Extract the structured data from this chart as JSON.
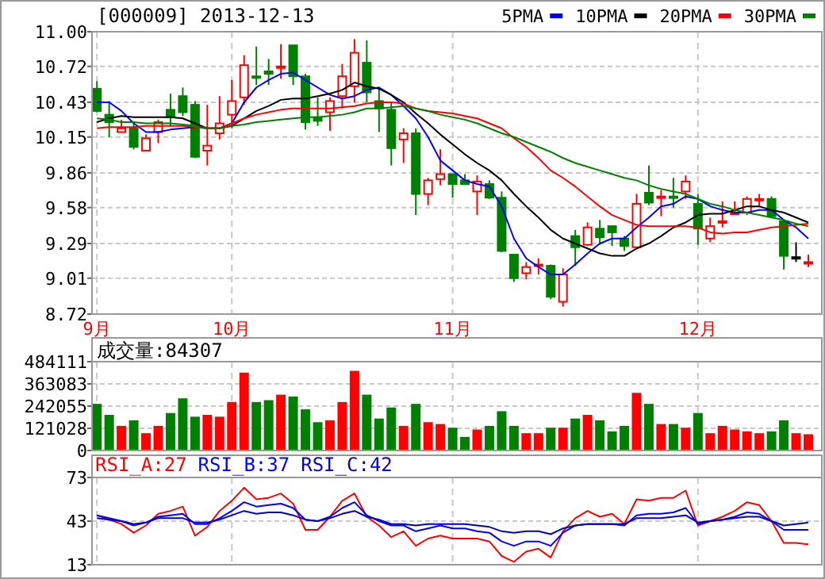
{
  "chart_data": [
    {
      "type": "candlestick",
      "title": "[000009] 2013-12-13",
      "categories": [
        "9月",
        null,
        null,
        null,
        null,
        null,
        null,
        null,
        null,
        null,
        null,
        "10月",
        null,
        null,
        null,
        null,
        null,
        null,
        null,
        null,
        null,
        null,
        null,
        null,
        null,
        null,
        null,
        null,
        null,
        "11月",
        null,
        null,
        null,
        null,
        null,
        null,
        null,
        null,
        null,
        null,
        null,
        null,
        null,
        null,
        null,
        null,
        null,
        null,
        null,
        "12月",
        null,
        null,
        null,
        null,
        null,
        null,
        null,
        null,
        null
      ],
      "ohlc": [
        [
          10.54,
          10.6,
          10.35,
          10.36
        ],
        [
          10.33,
          10.44,
          10.15,
          10.27
        ],
        [
          10.19,
          10.29,
          10.19,
          10.22
        ],
        [
          10.22,
          10.27,
          10.05,
          10.07
        ],
        [
          10.04,
          10.17,
          10.04,
          10.14
        ],
        [
          10.19,
          10.29,
          10.1,
          10.27
        ],
        [
          10.37,
          10.5,
          10.24,
          10.31
        ],
        [
          10.48,
          10.55,
          10.32,
          10.35
        ],
        [
          10.41,
          10.44,
          9.98,
          9.99
        ],
        [
          10.04,
          10.41,
          9.92,
          10.08
        ],
        [
          10.18,
          10.48,
          10.13,
          10.26
        ],
        [
          10.33,
          10.61,
          10.22,
          10.44
        ],
        [
          10.47,
          10.81,
          10.41,
          10.73
        ],
        [
          10.64,
          10.88,
          10.57,
          10.63
        ],
        [
          10.68,
          10.78,
          10.57,
          10.66
        ],
        [
          10.71,
          10.9,
          10.62,
          10.72
        ],
        [
          10.89,
          10.89,
          10.57,
          10.64
        ],
        [
          10.64,
          10.66,
          10.21,
          10.27
        ],
        [
          10.31,
          10.47,
          10.24,
          10.28
        ],
        [
          10.35,
          10.47,
          10.2,
          10.44
        ],
        [
          10.48,
          10.74,
          10.38,
          10.64
        ],
        [
          10.56,
          10.94,
          10.43,
          10.83
        ],
        [
          10.75,
          10.93,
          10.43,
          10.51
        ],
        [
          10.44,
          10.55,
          10.19,
          10.38
        ],
        [
          10.37,
          10.43,
          9.92,
          10.06
        ],
        [
          10.13,
          10.22,
          9.94,
          10.18
        ],
        [
          10.18,
          10.22,
          9.52,
          9.69
        ],
        [
          9.69,
          9.82,
          9.6,
          9.8
        ],
        [
          9.81,
          10.05,
          9.76,
          9.85
        ],
        [
          9.85,
          9.85,
          9.66,
          9.77
        ],
        [
          9.8,
          9.85,
          9.77,
          9.77
        ],
        [
          9.71,
          9.84,
          9.52,
          9.79
        ],
        [
          9.77,
          9.8,
          9.65,
          9.66
        ],
        [
          9.66,
          9.71,
          9.22,
          9.23
        ],
        [
          9.2,
          9.2,
          8.98,
          9.01
        ],
        [
          9.05,
          9.14,
          9.0,
          9.1
        ],
        [
          9.11,
          9.17,
          9.04,
          9.12
        ],
        [
          9.11,
          9.12,
          8.84,
          8.86
        ],
        [
          8.82,
          9.09,
          8.78,
          9.04
        ],
        [
          9.35,
          9.4,
          9.11,
          9.26
        ],
        [
          9.28,
          9.46,
          9.27,
          9.42
        ],
        [
          9.41,
          9.48,
          9.28,
          9.34
        ],
        [
          9.43,
          9.43,
          9.27,
          9.38
        ],
        [
          9.33,
          9.35,
          9.23,
          9.27
        ],
        [
          9.26,
          9.69,
          9.26,
          9.61
        ],
        [
          9.7,
          9.92,
          9.6,
          9.62
        ],
        [
          9.66,
          9.72,
          9.51,
          9.67
        ],
        [
          9.67,
          9.82,
          9.58,
          9.66
        ],
        [
          9.71,
          9.84,
          9.65,
          9.79
        ],
        [
          9.61,
          9.69,
          9.28,
          9.41
        ],
        [
          9.33,
          9.5,
          9.3,
          9.43
        ],
        [
          9.46,
          9.63,
          9.42,
          9.47
        ],
        [
          9.53,
          9.63,
          9.52,
          9.54
        ],
        [
          9.54,
          9.67,
          9.52,
          9.65
        ],
        [
          9.64,
          9.69,
          9.59,
          9.65
        ],
        [
          9.65,
          9.67,
          9.5,
          9.51
        ],
        [
          9.47,
          9.48,
          9.08,
          9.19
        ],
        [
          9.18,
          9.3,
          9.14,
          9.18
        ],
        [
          9.13,
          9.2,
          9.1,
          9.14
        ]
      ],
      "colors": [
        "#008000",
        "#008000",
        "#ff0000",
        "#008000",
        "#ff0000",
        "#ff0000",
        "#008000",
        "#008000",
        "#008000",
        "#ff0000",
        "#ff0000",
        "#ff0000",
        "#ff0000",
        "#008000",
        "#008000",
        "#ff0000",
        "#008000",
        "#008000",
        "#008000",
        "#ff0000",
        "#ff0000",
        "#ff0000",
        "#008000",
        "#008000",
        "#008000",
        "#ff0000",
        "#008000",
        "#ff0000",
        "#ff0000",
        "#008000",
        "#008000",
        "#ff0000",
        "#008000",
        "#008000",
        "#008000",
        "#ff0000",
        "#ff0000",
        "#008000",
        "#ff0000",
        "#008000",
        "#ff0000",
        "#008000",
        "#008000",
        "#008000",
        "#ff0000",
        "#008000",
        "#ff0000",
        "#008000",
        "#ff0000",
        "#008000",
        "#ff0000",
        "#ff0000",
        "#ff0000",
        "#ff0000",
        "#ff0000",
        "#008000",
        "#008000",
        "#000000",
        "#ff0000"
      ],
      "series": [
        {
          "name": "5PMA",
          "type": "line",
          "color": "#0000ff",
          "values": [
            10.43,
            10.43,
            10.36,
            10.26,
            10.19,
            10.19,
            10.21,
            10.22,
            10.23,
            10.22,
            10.22,
            10.26,
            10.43,
            10.55,
            10.61,
            10.66,
            10.67,
            10.61,
            10.55,
            10.49,
            10.46,
            10.48,
            10.53,
            10.55,
            10.49,
            10.4,
            10.3,
            10.15,
            9.96,
            9.88,
            9.8,
            9.77,
            9.75,
            9.59,
            9.33,
            9.17,
            9.1,
            9.04,
            9.04,
            9.12,
            9.21,
            9.29,
            9.33,
            9.33,
            9.42,
            9.5,
            9.59,
            9.61,
            9.67,
            9.65,
            9.59,
            9.56,
            9.54,
            9.54,
            9.56,
            9.56,
            9.48,
            9.42,
            9.33
          ]
        },
        {
          "name": "10PMA",
          "type": "line",
          "color": "#000000",
          "values": [
            10.27,
            10.3,
            10.32,
            10.31,
            10.31,
            10.31,
            10.31,
            10.3,
            10.26,
            10.22,
            10.22,
            10.24,
            10.3,
            10.36,
            10.4,
            10.45,
            10.46,
            10.46,
            10.48,
            10.5,
            10.53,
            10.59,
            10.56,
            10.54,
            10.49,
            10.43,
            10.34,
            10.26,
            10.17,
            10.09,
            10.01,
            9.94,
            9.88,
            9.8,
            9.69,
            9.59,
            9.5,
            9.4,
            9.33,
            9.29,
            9.25,
            9.21,
            9.19,
            9.19,
            9.25,
            9.29,
            9.35,
            9.42,
            9.46,
            9.52,
            9.53,
            9.53,
            9.56,
            9.59,
            9.59,
            9.56,
            9.54,
            9.5,
            9.46
          ]
        },
        {
          "name": "20PMA",
          "type": "line",
          "color": "#ff0000",
          "values": [
            10.22,
            10.23,
            10.23,
            10.23,
            10.24,
            10.24,
            10.24,
            10.24,
            10.23,
            10.22,
            10.22,
            10.26,
            10.3,
            10.33,
            10.35,
            10.37,
            10.38,
            10.38,
            10.38,
            10.38,
            10.39,
            10.4,
            10.42,
            10.43,
            10.43,
            10.42,
            10.38,
            10.36,
            10.35,
            10.34,
            10.32,
            10.3,
            10.26,
            10.22,
            10.14,
            10.07,
            9.98,
            9.88,
            9.82,
            9.75,
            9.67,
            9.59,
            9.52,
            9.48,
            9.44,
            9.43,
            9.43,
            9.43,
            9.43,
            9.42,
            9.38,
            9.37,
            9.38,
            9.38,
            9.4,
            9.42,
            9.43,
            9.44,
            9.45
          ]
        },
        {
          "name": "30PMA",
          "type": "line",
          "color": "#008000",
          "values": [
            10.3,
            10.29,
            10.27,
            10.27,
            10.26,
            10.26,
            10.26,
            10.25,
            10.24,
            10.22,
            10.22,
            10.24,
            10.25,
            10.27,
            10.28,
            10.29,
            10.3,
            10.31,
            10.31,
            10.32,
            10.33,
            10.35,
            10.38,
            10.38,
            10.39,
            10.4,
            10.38,
            10.36,
            10.33,
            10.31,
            10.29,
            10.26,
            10.22,
            10.18,
            10.15,
            10.11,
            10.07,
            10.03,
            9.98,
            9.94,
            9.91,
            9.88,
            9.85,
            9.82,
            9.8,
            9.76,
            9.73,
            9.71,
            9.69,
            9.65,
            9.61,
            9.59,
            9.56,
            9.54,
            9.52,
            9.5,
            9.48,
            9.45,
            9.43
          ]
        }
      ],
      "ylim": [
        8.72,
        11.0
      ],
      "yticks": [
        8.72,
        9.01,
        9.29,
        9.58,
        9.86,
        10.15,
        10.43,
        10.72,
        {
          "value": 11,
          "label": "11.00"
        }
      ],
      "grid": true,
      "legend": "top right"
    },
    {
      "type": "bar",
      "title": "成交量:84307",
      "categories": [
        null,
        null,
        null,
        null,
        null,
        null,
        null,
        null,
        null,
        null,
        null,
        null,
        null,
        null,
        null,
        null,
        null,
        null,
        null,
        null,
        null,
        null,
        null,
        null,
        null,
        null,
        null,
        null,
        null,
        null,
        null,
        null,
        null,
        null,
        null,
        null,
        null,
        null,
        null,
        null,
        null,
        null,
        null,
        null,
        null,
        null,
        null,
        null,
        null,
        null,
        null,
        null,
        null,
        null,
        null,
        null,
        null,
        null,
        null
      ],
      "values": [
        250000,
        190000,
        130000,
        160000,
        90000,
        130000,
        200000,
        280000,
        180000,
        190000,
        180000,
        260000,
        420000,
        260000,
        270000,
        300000,
        290000,
        220000,
        150000,
        160000,
        260000,
        430000,
        300000,
        170000,
        230000,
        130000,
        250000,
        150000,
        140000,
        120000,
        70000,
        110000,
        130000,
        210000,
        130000,
        90000,
        90000,
        120000,
        120000,
        170000,
        190000,
        160000,
        100000,
        130000,
        310000,
        250000,
        140000,
        140000,
        120000,
        200000,
        90000,
        130000,
        110000,
        100000,
        90000,
        100000,
        160000,
        90000,
        84307
      ],
      "colors": [
        "#008000",
        "#008000",
        "#ff0000",
        "#008000",
        "#ff0000",
        "#ff0000",
        "#008000",
        "#008000",
        "#008000",
        "#ff0000",
        "#ff0000",
        "#ff0000",
        "#ff0000",
        "#008000",
        "#008000",
        "#ff0000",
        "#008000",
        "#008000",
        "#008000",
        "#ff0000",
        "#ff0000",
        "#ff0000",
        "#008000",
        "#008000",
        "#008000",
        "#ff0000",
        "#008000",
        "#ff0000",
        "#ff0000",
        "#008000",
        "#008000",
        "#ff0000",
        "#008000",
        "#008000",
        "#008000",
        "#ff0000",
        "#ff0000",
        "#008000",
        "#ff0000",
        "#008000",
        "#ff0000",
        "#008000",
        "#008000",
        "#008000",
        "#ff0000",
        "#008000",
        "#ff0000",
        "#008000",
        "#ff0000",
        "#008000",
        "#ff0000",
        "#ff0000",
        "#ff0000",
        "#ff0000",
        "#ff0000",
        "#008000",
        "#008000",
        "#ff0000",
        "#ff0000"
      ],
      "ylim": [
        0,
        484111
      ],
      "yticks": [
        0,
        121028,
        242055,
        363083,
        484111
      ],
      "grid": true,
      "tick_labels": "y"
    },
    {
      "type": "line",
      "categories": [
        null,
        null,
        null,
        null,
        null,
        null,
        null,
        null,
        null,
        null,
        null,
        null,
        null,
        null,
        null,
        null,
        null,
        null,
        null,
        null,
        null,
        null,
        null,
        null,
        null,
        null,
        null,
        null,
        null,
        null,
        null,
        null,
        null,
        null,
        null,
        null,
        null,
        null,
        null,
        null,
        null,
        null,
        null,
        null,
        null,
        null,
        null,
        null,
        null,
        null,
        null,
        null,
        null,
        null,
        null,
        null,
        null,
        null,
        null
      ],
      "series": [
        {
          "name": "RSI_A:27",
          "color": "#ff0000",
          "values": [
            47,
            44,
            41,
            35,
            40,
            48,
            50,
            53,
            33,
            39,
            50,
            57,
            66,
            58,
            59,
            62,
            55,
            37,
            37,
            46,
            57,
            62,
            46,
            40,
            32,
            36,
            26,
            31,
            33,
            31,
            31,
            31,
            29,
            19,
            15,
            22,
            24,
            18,
            36,
            45,
            50,
            46,
            48,
            41,
            58,
            57,
            59,
            59,
            64,
            40,
            43,
            46,
            50,
            56,
            54,
            43,
            28,
            28,
            27
          ]
        },
        {
          "name": "RSI_B:37",
          "color": "#0000ff",
          "values": [
            47,
            45,
            43,
            40,
            42,
            46,
            47,
            48,
            41,
            41,
            45,
            50,
            56,
            53,
            54,
            55,
            52,
            44,
            43,
            46,
            52,
            56,
            47,
            43,
            40,
            40,
            36,
            38,
            40,
            38,
            38,
            36,
            35,
            29,
            26,
            29,
            29,
            26,
            35,
            40,
            41,
            41,
            41,
            40,
            47,
            48,
            48,
            49,
            52,
            41,
            43,
            44,
            46,
            49,
            48,
            43,
            37,
            37,
            37
          ]
        },
        {
          "name": "RSI_C:42",
          "color": "#0000c8",
          "values": [
            45,
            44,
            43,
            41,
            42,
            45,
            45,
            45,
            42,
            42,
            44,
            47,
            50,
            48,
            49,
            49,
            47,
            44,
            43,
            45,
            48,
            50,
            46,
            44,
            41,
            41,
            40,
            41,
            41,
            41,
            41,
            40,
            39,
            36,
            35,
            36,
            36,
            34,
            38,
            40,
            41,
            41,
            41,
            41,
            45,
            45,
            45,
            46,
            47,
            42,
            43,
            44,
            45,
            46,
            46,
            43,
            40,
            41,
            42
          ]
        }
      ],
      "ylim": [
        13,
        73
      ],
      "yticks": [
        13,
        43,
        73
      ],
      "grid": true,
      "legend": "top left",
      "tick_labels": "y"
    }
  ]
}
